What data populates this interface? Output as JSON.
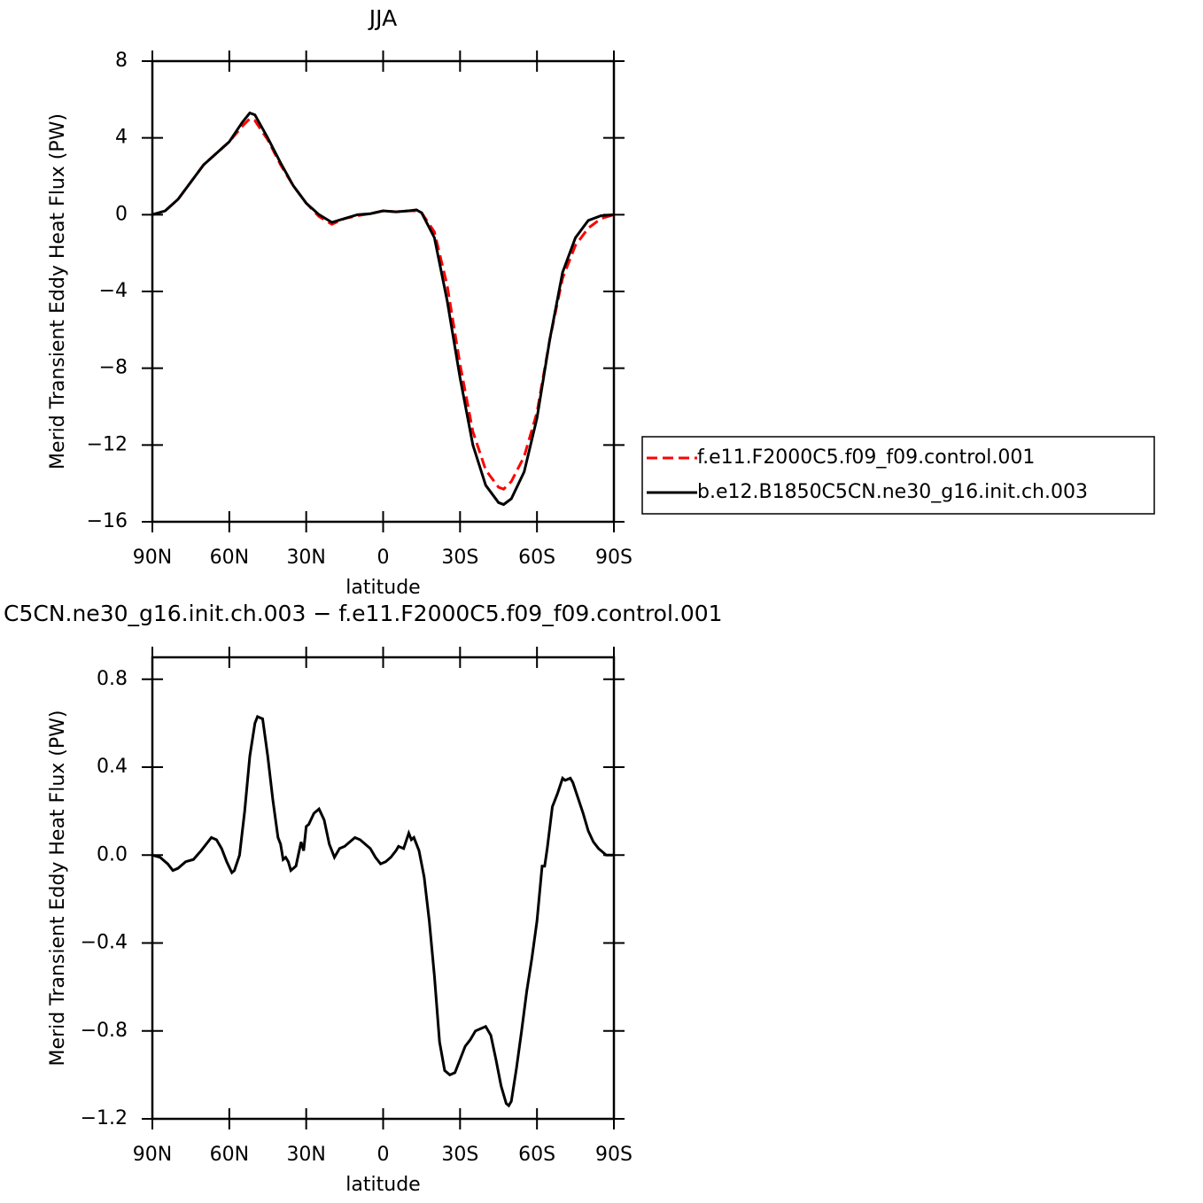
{
  "chart_data": [
    {
      "type": "line",
      "title": "JJA",
      "xlabel": "latitude",
      "ylabel": "Merid Transient Eddy Heat Flux (PW)",
      "xlim": [
        90,
        -90
      ],
      "xticks": [
        {
          "value": 90,
          "label": "90N"
        },
        {
          "value": 60,
          "label": "60N"
        },
        {
          "value": 30,
          "label": "30N"
        },
        0,
        {
          "value": -30,
          "label": "30S"
        },
        {
          "value": -60,
          "label": "60S"
        },
        {
          "value": -90,
          "label": "90S"
        }
      ],
      "ylim": [
        -16,
        8
      ],
      "yticks": [
        {
          "value": -16,
          "label": "−16"
        },
        {
          "value": -12,
          "label": "−12"
        },
        {
          "value": -8,
          "label": "−8"
        },
        {
          "value": -4,
          "label": "−4"
        },
        0,
        4,
        8
      ],
      "legend": "right",
      "x": [
        90,
        85,
        80,
        75,
        70,
        65,
        60,
        55,
        52,
        50,
        45,
        40,
        35,
        30,
        25,
        20,
        15,
        10,
        5,
        0,
        -5,
        -10,
        -13,
        -15,
        -20,
        -25,
        -30,
        -35,
        -40,
        -45,
        -47,
        -50,
        -55,
        -60,
        -65,
        -70,
        -75,
        -80,
        -85,
        -90
      ],
      "series": [
        {
          "name": "f.e11.F2000C5.f09_f09.control.001",
          "color": "#ff0000",
          "dash": "dashed",
          "values": [
            0,
            0.2,
            0.8,
            1.7,
            2.6,
            3.2,
            3.8,
            4.6,
            5.0,
            4.9,
            3.9,
            2.6,
            1.5,
            0.6,
            -0.1,
            -0.5,
            -0.2,
            -0.05,
            0.05,
            0.2,
            0.15,
            0.2,
            0.2,
            0.1,
            -0.9,
            -3.7,
            -7.8,
            -11.3,
            -13.3,
            -14.2,
            -14.3,
            -13.9,
            -12.6,
            -10.3,
            -6.5,
            -3.3,
            -1.6,
            -0.7,
            -0.2,
            0
          ]
        },
        {
          "name": "b.e12.B1850C5CN.ne30_g16.init.ch.003",
          "color": "#000000",
          "dash": "solid",
          "values": [
            0,
            0.2,
            0.8,
            1.7,
            2.6,
            3.2,
            3.8,
            4.8,
            5.3,
            5.2,
            4.0,
            2.7,
            1.5,
            0.6,
            0.0,
            -0.4,
            -0.2,
            0.0,
            0.05,
            0.2,
            0.15,
            0.2,
            0.25,
            0.1,
            -1.2,
            -4.5,
            -8.5,
            -12.0,
            -14.1,
            -15.0,
            -15.1,
            -14.8,
            -13.4,
            -10.6,
            -6.5,
            -3.0,
            -1.2,
            -0.3,
            -0.05,
            0
          ]
        }
      ]
    },
    {
      "type": "line",
      "title": "C5CN.ne30_g16.init.ch.003 − f.e11.F2000C5.f09_f09.control.001",
      "xlabel": "latitude",
      "ylabel": "Merid Transient Eddy Heat Flux (PW)",
      "xlim": [
        90,
        -90
      ],
      "xticks": [
        {
          "value": 90,
          "label": "90N"
        },
        {
          "value": 60,
          "label": "60N"
        },
        {
          "value": 30,
          "label": "30N"
        },
        0,
        {
          "value": -30,
          "label": "30S"
        },
        {
          "value": -60,
          "label": "60S"
        },
        {
          "value": -90,
          "label": "90S"
        }
      ],
      "ylim": [
        -1.2,
        0.9
      ],
      "yticks": [
        {
          "value": -1.2,
          "label": "−1.2"
        },
        {
          "value": -0.8,
          "label": "−0.8"
        },
        {
          "value": -0.4,
          "label": "−0.4"
        },
        {
          "value": 0,
          "label": "0.0"
        },
        0.4,
        0.8
      ],
      "x": [
        90,
        87,
        84,
        82,
        80,
        77,
        74,
        71,
        69,
        67,
        65,
        63,
        61,
        59,
        58,
        56,
        54,
        52,
        50,
        49,
        47,
        45,
        43,
        41,
        40,
        39,
        38,
        37,
        36,
        34,
        32,
        31,
        30,
        29,
        27,
        25,
        23,
        21,
        19,
        17,
        15,
        13,
        11,
        9,
        7,
        5,
        3,
        1,
        -1,
        -3,
        -5,
        -6,
        -8,
        -10,
        -11,
        -12,
        -14,
        -16,
        -18,
        -20,
        -22,
        -24,
        -26,
        -28,
        -30,
        -32,
        -34,
        -36,
        -38,
        -40,
        -42,
        -44,
        -46,
        -48,
        -49,
        -50,
        -52,
        -54,
        -56,
        -58,
        -60,
        -62,
        -63,
        -64,
        -66,
        -68,
        -70,
        -71,
        -73,
        -74,
        -76,
        -78,
        -80,
        -82,
        -84,
        -87,
        -90
      ],
      "series": [
        {
          "color": "#000000",
          "dash": "solid",
          "values": [
            0,
            -0.01,
            -0.04,
            -0.07,
            -0.06,
            -0.03,
            -0.02,
            0.02,
            0.05,
            0.08,
            0.07,
            0.03,
            -0.03,
            -0.08,
            -0.07,
            0.0,
            0.2,
            0.45,
            0.6,
            0.63,
            0.62,
            0.45,
            0.25,
            0.08,
            0.05,
            -0.02,
            -0.01,
            -0.03,
            -0.07,
            -0.05,
            0.06,
            0.02,
            0.13,
            0.14,
            0.19,
            0.21,
            0.16,
            0.05,
            -0.01,
            0.03,
            0.04,
            0.06,
            0.08,
            0.07,
            0.05,
            0.03,
            -0.01,
            -0.04,
            -0.03,
            -0.01,
            0.02,
            0.04,
            0.03,
            0.1,
            0.07,
            0.08,
            0.02,
            -0.1,
            -0.3,
            -0.55,
            -0.85,
            -0.98,
            -1.0,
            -0.99,
            -0.93,
            -0.87,
            -0.84,
            -0.8,
            -0.79,
            -0.78,
            -0.82,
            -0.93,
            -1.05,
            -1.13,
            -1.14,
            -1.12,
            -0.97,
            -0.8,
            -0.62,
            -0.47,
            -0.3,
            -0.05,
            -0.05,
            0.03,
            0.22,
            0.28,
            0.35,
            0.34,
            0.35,
            0.33,
            0.26,
            0.19,
            0.11,
            0.06,
            0.03,
            0.0,
            0
          ]
        }
      ]
    }
  ]
}
